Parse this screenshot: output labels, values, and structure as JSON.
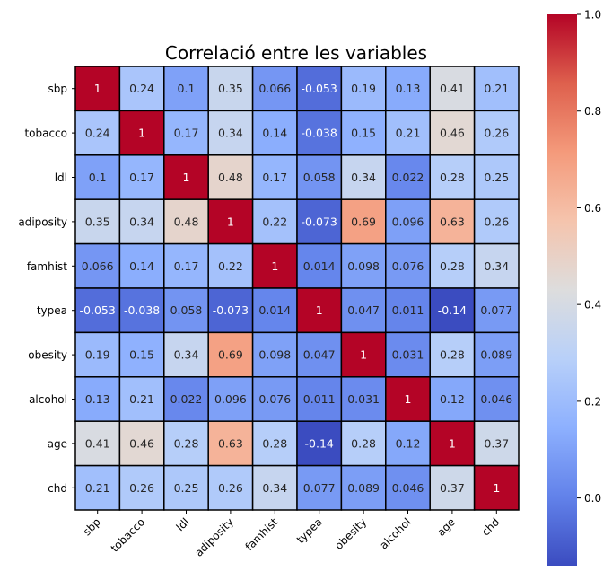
{
  "chart_data": {
    "type": "heatmap",
    "title": "Correlació entre les variables",
    "variables": [
      "sbp",
      "tobacco",
      "ldl",
      "adiposity",
      "famhist",
      "typea",
      "obesity",
      "alcohol",
      "age",
      "chd"
    ],
    "matrix": [
      [
        1,
        0.24,
        0.1,
        0.35,
        0.066,
        -0.053,
        0.19,
        0.13,
        0.41,
        0.21
      ],
      [
        0.24,
        1,
        0.17,
        0.34,
        0.14,
        -0.038,
        0.15,
        0.21,
        0.46,
        0.26
      ],
      [
        0.1,
        0.17,
        1,
        0.48,
        0.17,
        0.058,
        0.34,
        0.022,
        0.28,
        0.25
      ],
      [
        0.35,
        0.34,
        0.48,
        1,
        0.22,
        -0.073,
        0.69,
        0.096,
        0.63,
        0.26
      ],
      [
        0.066,
        0.14,
        0.17,
        0.22,
        1,
        0.014,
        0.098,
        0.076,
        0.28,
        0.34
      ],
      [
        -0.053,
        -0.038,
        0.058,
        -0.073,
        0.014,
        1,
        0.047,
        0.011,
        -0.14,
        0.077
      ],
      [
        0.19,
        0.15,
        0.34,
        0.69,
        0.098,
        0.047,
        1,
        0.031,
        0.28,
        0.089
      ],
      [
        0.13,
        0.21,
        0.022,
        0.096,
        0.076,
        0.011,
        0.031,
        1,
        0.12,
        0.046
      ],
      [
        0.41,
        0.46,
        0.28,
        0.63,
        0.28,
        -0.14,
        0.28,
        0.12,
        1,
        0.37
      ],
      [
        0.21,
        0.26,
        0.25,
        0.26,
        0.34,
        0.077,
        0.089,
        0.046,
        0.37,
        1
      ]
    ],
    "colormap": "coolwarm",
    "vmin": -0.14,
    "vmax": 1,
    "colorbar_ticks": [
      0.0,
      0.2,
      0.4,
      0.6,
      0.8,
      1.0
    ],
    "colorbar_tick_labels": [
      "0.0",
      "0.2",
      "0.4",
      "0.6",
      "0.8",
      "1.0"
    ],
    "cell_border_color": "#000000",
    "annotations": true
  }
}
